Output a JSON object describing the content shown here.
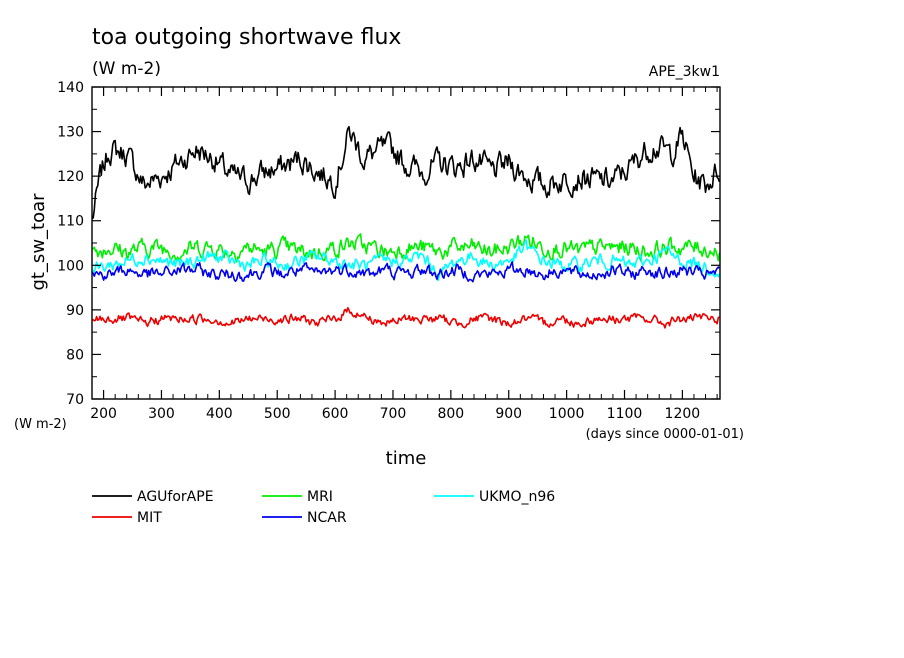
{
  "chart_data": {
    "type": "line",
    "title": "toa outgoing shortwave flux",
    "subtitle": "(W m-2)",
    "tag": "APE_3kw1",
    "xlabel": "time",
    "xunits": "(days since 0000-01-01)",
    "ylabel": "gt_sw_toar",
    "yunits": "(W m-2)",
    "xlim": [
      180,
      1265
    ],
    "ylim": [
      70,
      140
    ],
    "xticks": [
      "200",
      "300",
      "400",
      "500",
      "600",
      "700",
      "800",
      "900",
      "1000",
      "1100",
      "1200"
    ],
    "yticks": [
      "70",
      "80",
      "90",
      "100",
      "110",
      "120",
      "130",
      "140"
    ],
    "grid": false,
    "legend_position": "below",
    "series": [
      {
        "name": "AGUforAPE",
        "color": "#000000",
        "x": [
          180,
          195,
          210,
          240,
          270,
          300,
          330,
          360,
          390,
          420,
          450,
          480,
          510,
          540,
          570,
          600,
          625,
          650,
          680,
          700,
          720,
          750,
          780,
          810,
          840,
          870,
          900,
          930,
          960,
          990,
          1020,
          1050,
          1080,
          1110,
          1130,
          1150,
          1180,
          1200,
          1220,
          1240,
          1265
        ],
        "values": [
          110,
          120,
          126,
          125,
          118,
          120,
          123,
          126,
          124,
          120,
          119,
          121,
          122,
          124,
          121,
          119,
          130,
          124,
          126,
          126,
          123,
          121,
          123,
          122,
          124,
          121,
          123,
          120,
          118,
          119,
          120,
          119,
          119,
          122,
          125,
          127,
          125,
          129,
          120,
          118,
          122
        ]
      },
      {
        "name": "MRI",
        "color": "#00ee00",
        "x": [
          180,
          210,
          240,
          270,
          300,
          330,
          360,
          390,
          420,
          450,
          480,
          510,
          540,
          570,
          600,
          630,
          660,
          690,
          720,
          750,
          780,
          810,
          840,
          870,
          900,
          930,
          960,
          990,
          1020,
          1050,
          1080,
          1110,
          1140,
          1170,
          1200,
          1230,
          1265
        ],
        "values": [
          103,
          104,
          103,
          104,
          104,
          103,
          104,
          104,
          103,
          104,
          103,
          104,
          103,
          103,
          104,
          105,
          104,
          103,
          104,
          104,
          103,
          104,
          104,
          103,
          104,
          106,
          104,
          104,
          103,
          104,
          104,
          104,
          103,
          104,
          104,
          104,
          103
        ]
      },
      {
        "name": "UKMO_n96",
        "color": "#00ffff",
        "x": [
          180,
          210,
          240,
          270,
          300,
          330,
          360,
          390,
          420,
          450,
          480,
          510,
          540,
          570,
          600,
          630,
          660,
          690,
          720,
          750,
          780,
          810,
          840,
          870,
          900,
          930,
          960,
          990,
          1020,
          1050,
          1080,
          1110,
          1140,
          1170,
          1200,
          1230,
          1265
        ],
        "values": [
          99,
          100,
          101,
          102,
          101,
          100,
          101,
          102,
          101,
          100,
          101,
          100,
          101,
          102,
          101,
          100,
          100,
          101,
          101,
          102,
          98,
          101,
          102,
          100,
          101,
          104,
          101,
          100,
          100,
          101,
          101,
          100,
          101,
          103,
          101,
          100,
          99
        ]
      },
      {
        "name": "NCAR",
        "color": "#0000ee",
        "x": [
          180,
          210,
          240,
          270,
          300,
          330,
          360,
          390,
          420,
          450,
          480,
          510,
          540,
          570,
          600,
          630,
          660,
          690,
          720,
          750,
          780,
          810,
          840,
          870,
          900,
          930,
          960,
          990,
          1020,
          1050,
          1080,
          1110,
          1140,
          1170,
          1200,
          1230,
          1265
        ],
        "values": [
          98,
          98,
          99,
          98,
          98,
          99,
          99,
          98,
          98,
          98,
          99,
          98,
          99,
          98,
          99,
          99,
          98,
          99,
          98,
          99,
          98,
          99,
          98,
          98,
          99,
          99,
          98,
          99,
          98,
          98,
          99,
          98,
          99,
          98,
          99,
          98,
          98
        ]
      },
      {
        "name": "MIT",
        "color": "#ee0000",
        "x": [
          180,
          210,
          240,
          270,
          300,
          330,
          360,
          390,
          420,
          450,
          480,
          510,
          540,
          570,
          600,
          625,
          660,
          690,
          720,
          750,
          780,
          810,
          840,
          870,
          900,
          930,
          960,
          990,
          1020,
          1050,
          1080,
          1110,
          1140,
          1170,
          1200,
          1230,
          1265
        ],
        "values": [
          88,
          88,
          88,
          87,
          88,
          88,
          88,
          88,
          87,
          88,
          88,
          88,
          88,
          87,
          88,
          90,
          88,
          87,
          88,
          88,
          88,
          87,
          88,
          88,
          87,
          88,
          87,
          88,
          87,
          88,
          88,
          88,
          88,
          87,
          88,
          88,
          88
        ]
      }
    ]
  }
}
